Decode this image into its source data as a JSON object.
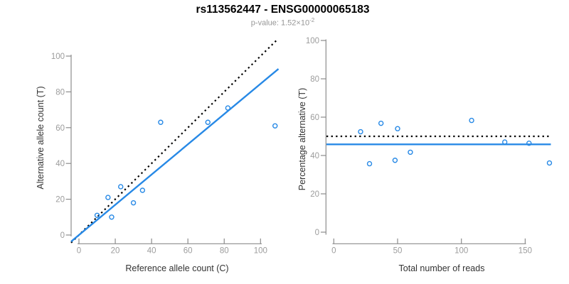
{
  "header": {
    "title": "rs113562447 - ENSG00000065183",
    "subtitle_main": "p-value: 1.52×10",
    "subtitle_exponent": "-2"
  },
  "colors": {
    "point_blue": "#2789E6",
    "line_blue": "#2789E6",
    "line_black": "#000000",
    "axis_gray": "#8c8c8c",
    "tick_label_gray": "#9c9c9c",
    "axis_title_gray": "#333333",
    "subtitle_gray": "#969696"
  },
  "chart_data": [
    {
      "type": "scatter",
      "panel": "left",
      "xlabel": "Reference allele count (C)",
      "ylabel": "Alternative allele count (T)",
      "xlim": [
        -4.3,
        112.3
      ],
      "ylim": [
        -4.3,
        112.3
      ],
      "xticks": [
        0,
        20,
        40,
        60,
        80,
        100
      ],
      "yticks": [
        0,
        20,
        40,
        60,
        80,
        100
      ],
      "grid": false,
      "points": [
        [
          10,
          11
        ],
        [
          16,
          21
        ],
        [
          18,
          10
        ],
        [
          23,
          27
        ],
        [
          30,
          18
        ],
        [
          35,
          25
        ],
        [
          45,
          63
        ],
        [
          71,
          63
        ],
        [
          82,
          71
        ],
        [
          108,
          61
        ]
      ],
      "lines": [
        {
          "name": "identity-line",
          "style": "dotted",
          "color_key": "line_black",
          "slope": 1,
          "intercept": 0
        },
        {
          "name": "fit-line",
          "style": "solid",
          "color_key": "line_blue",
          "slope": 0.845,
          "intercept": 0
        }
      ]
    },
    {
      "type": "scatter",
      "panel": "right",
      "xlabel": "Total number of reads",
      "ylabel": "Percentage alternative (T)",
      "xlim": [
        -6.8,
        175.8
      ],
      "ylim": [
        -5.5,
        105
      ],
      "xticks": [
        0,
        50,
        100,
        150
      ],
      "yticks": [
        0,
        20,
        40,
        60,
        80,
        100
      ],
      "grid": false,
      "points": [
        [
          21,
          52.4
        ],
        [
          28,
          35.7
        ],
        [
          37,
          56.8
        ],
        [
          48,
          37.5
        ],
        [
          50,
          54.0
        ],
        [
          60,
          41.7
        ],
        [
          108,
          58.3
        ],
        [
          134,
          47.0
        ],
        [
          153,
          46.4
        ],
        [
          169,
          36.1
        ]
      ],
      "lines": [
        {
          "name": "expected-percentage-line",
          "style": "dotted",
          "color_key": "line_black",
          "slope": 0,
          "intercept": 50
        },
        {
          "name": "observed-percentage-line",
          "style": "solid",
          "color_key": "line_blue",
          "slope": 0,
          "intercept": 45.8
        }
      ]
    }
  ]
}
